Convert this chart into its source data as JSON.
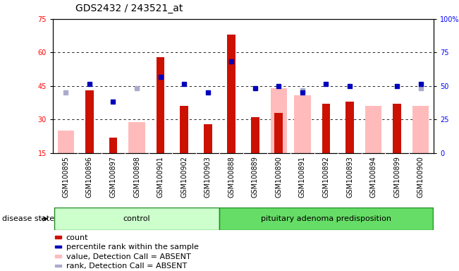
{
  "title": "GDS2432 / 243521_at",
  "samples": [
    "GSM100895",
    "GSM100896",
    "GSM100897",
    "GSM100898",
    "GSM100901",
    "GSM100902",
    "GSM100903",
    "GSM100888",
    "GSM100889",
    "GSM100890",
    "GSM100891",
    "GSM100892",
    "GSM100893",
    "GSM100894",
    "GSM100899",
    "GSM100900"
  ],
  "red_bars": [
    null,
    43,
    22,
    null,
    58,
    36,
    28,
    68,
    31,
    33,
    null,
    37,
    38,
    null,
    37,
    null
  ],
  "pink_bars": [
    25,
    null,
    null,
    29,
    null,
    null,
    null,
    null,
    null,
    44,
    41,
    null,
    null,
    36,
    null,
    36
  ],
  "blue_squares": [
    null,
    46,
    38,
    null,
    49,
    46,
    42,
    56,
    44,
    45,
    42,
    46,
    45,
    null,
    45,
    46
  ],
  "lightblue_squares": [
    42,
    null,
    null,
    44,
    null,
    null,
    null,
    null,
    null,
    null,
    43,
    null,
    null,
    null,
    null,
    44
  ],
  "ylim_left": [
    15,
    75
  ],
  "ylim_right": [
    0,
    100
  ],
  "yticks_left": [
    15,
    30,
    45,
    60,
    75
  ],
  "yticks_right": [
    0,
    25,
    50,
    75,
    100
  ],
  "ytick_labels_right": [
    "0",
    "25",
    "50",
    "75",
    "100%"
  ],
  "control_count": 7,
  "group_labels": [
    "control",
    "pituitary adenoma predisposition"
  ],
  "group_color_control": "#ccffcc",
  "group_color_pit": "#66dd66",
  "group_border_color": "#228822",
  "bar_color_red": "#cc1100",
  "bar_color_pink": "#ffbbbb",
  "dot_color_blue": "#0000bb",
  "dot_color_lightblue": "#aaaacc",
  "plot_bg": "#ffffff",
  "xticklabel_bg": "#cccccc",
  "title_fontsize": 10,
  "tick_fontsize": 7,
  "legend_fontsize": 8,
  "group_label_fontsize": 8,
  "disease_state_fontsize": 8
}
